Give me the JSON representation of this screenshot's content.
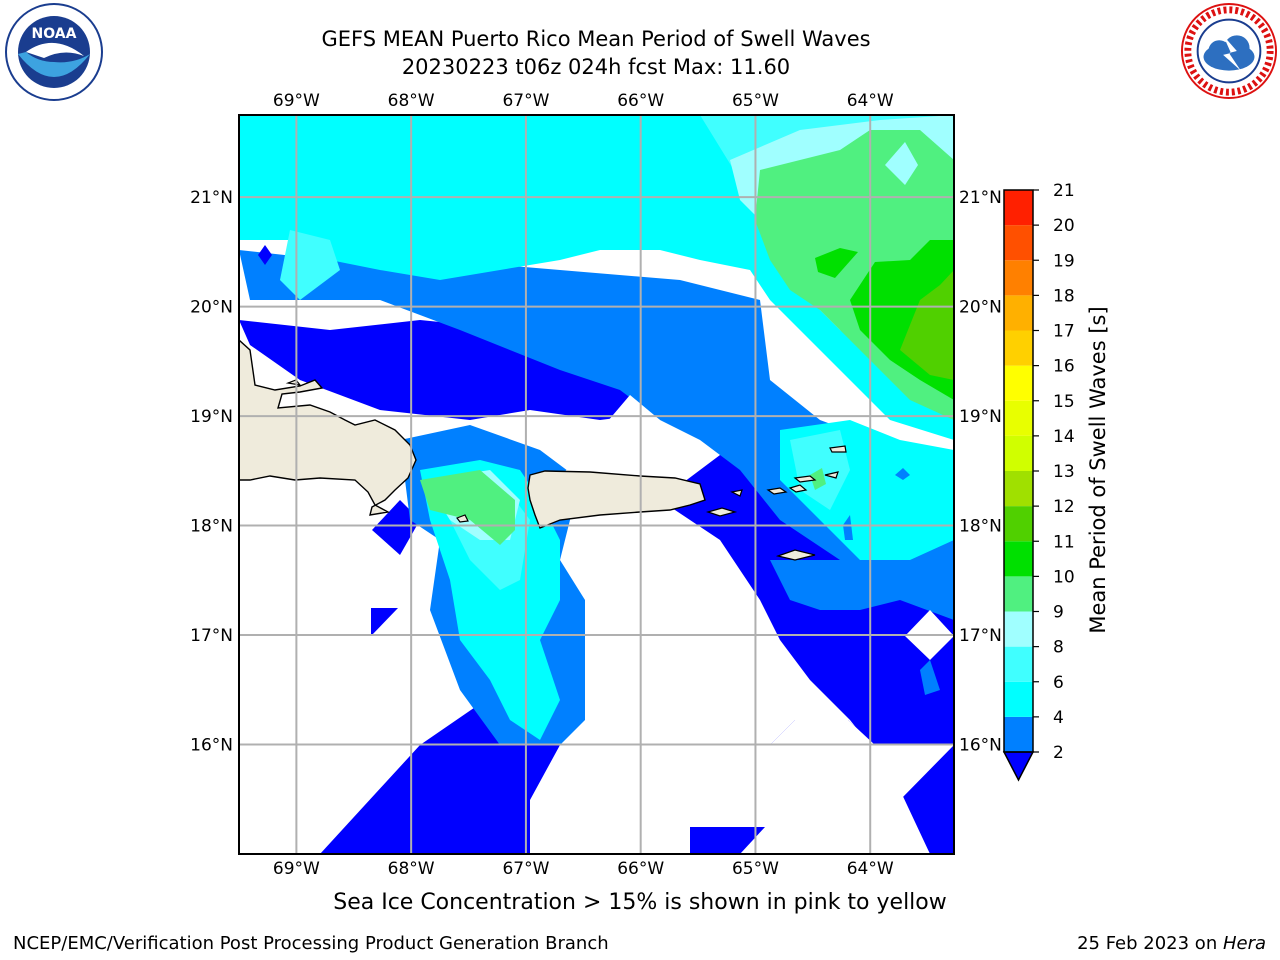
{
  "header": {
    "title_line1": "GEFS MEAN Puerto Rico Mean Period of Swell Waves",
    "title_line2": "20230223 t06z 024h fcst   Max: 11.60"
  },
  "logos": {
    "left": {
      "name": "NOAA",
      "text": "NOAA",
      "ring_text": "NATIONAL OCEANIC AND ATMOSPHERIC ADMINISTRATION · U.S. DEPARTMENT OF COMMERCE"
    },
    "right": {
      "name": "National Weather Service",
      "ring_text": "NATIONAL WEATHER SERVICE"
    }
  },
  "map": {
    "lon_labels": [
      "69°W",
      "68°W",
      "67°W",
      "66°W",
      "65°W",
      "64°W"
    ],
    "lat_labels": [
      "21°N",
      "20°N",
      "19°N",
      "18°N",
      "17°N",
      "16°N"
    ],
    "extent": {
      "lon_min": -69.5,
      "lon_max": -63.27,
      "lat_min": 15.0,
      "lat_max": 21.75
    }
  },
  "colorbar": {
    "label": "Mean Period of Swell Waves [s]",
    "levels": [
      "2",
      "4",
      "6",
      "8",
      "9",
      "10",
      "11",
      "12",
      "13",
      "14",
      "15",
      "16",
      "17",
      "18",
      "19",
      "20",
      "21"
    ],
    "colors": [
      "#0000ff",
      "#0080ff",
      "#00ffff",
      "#40ffff",
      "#a0ffff",
      "#50f080",
      "#00e000",
      "#50d000",
      "#a0e000",
      "#d0ff00",
      "#e8ff00",
      "#ffff00",
      "#ffd000",
      "#ffb000",
      "#ff8000",
      "#ff5000",
      "#ff2000",
      "#ff0000"
    ]
  },
  "note": "Sea Ice Concentration > 15% is shown in pink to yellow",
  "footer": {
    "left": "NCEP/EMC/Verification Post Processing Product Generation Branch",
    "date": "25 Feb 2023 on ",
    "machine": "Hera"
  }
}
